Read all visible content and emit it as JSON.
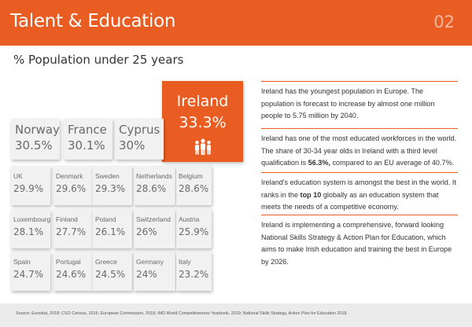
{
  "header": {
    "title": "Talent & Education",
    "page_number": "02",
    "color": "#ea5d22"
  },
  "subtitle": "% Population under 25 years",
  "highlight": {
    "country": "Ireland",
    "value": "33.3%",
    "icon": "people-group-icon",
    "color": "#ea5d22"
  },
  "big_tiles": [
    {
      "country": "Norway",
      "value": "30.5%"
    },
    {
      "country": "France",
      "value": "30.1%"
    },
    {
      "country": "Cyprus",
      "value": "30%"
    }
  ],
  "small_tiles": [
    {
      "country": "UK",
      "value": "29.9%"
    },
    {
      "country": "Denmark",
      "value": "29.6%"
    },
    {
      "country": "Sweden",
      "value": "29.3%"
    },
    {
      "country": "Netherlands",
      "value": "28.6%"
    },
    {
      "country": "Belgium",
      "value": "28.6%"
    },
    {
      "country": "Luxembourg",
      "value": "28.1%"
    },
    {
      "country": "Finland",
      "value": "27.7%"
    },
    {
      "country": "Poland",
      "value": "26.1%"
    },
    {
      "country": "Switzerland",
      "value": "26%"
    },
    {
      "country": "Austria",
      "value": "25.9%"
    },
    {
      "country": "Spain",
      "value": "24.7%"
    },
    {
      "country": "Portugal",
      "value": "24.6%"
    },
    {
      "country": "Greece",
      "value": "24.5%"
    },
    {
      "country": "Germany",
      "value": "24%"
    },
    {
      "country": "Italy",
      "value": "23.2%"
    }
  ],
  "info": {
    "p1": "Ireland has the youngest population in Europe. The population is forecast to increase by almost one million people to 5.75 million by 2040.",
    "p2_pre": "Ireland has one of the most educated workforces in the world. The share of 30-34 year olds in Ireland with a third level qualification is ",
    "p2_bold": "56.3%,",
    "p2_post": " compared to an EU average of 40.7%.",
    "p3_pre": "Ireland's education system is amongst the best in the world. It ranks in the ",
    "p3_bold": "top 10",
    "p3_post": " globally as an education system that meets the needs of a competitive economy.",
    "p4": "Ireland is implementing a comprehensive, forward looking National Skills Strategy & Action Plan for Education, which aims to make Irish education and training the best in Europe by 2026."
  },
  "source": "Source: Eurostat, 2018; CSO Census, 2016; European Commission, 2018; IMD World Competitiveness Yearbook, 2019; National Skills Strategy, Action Plan for Education 2018."
}
